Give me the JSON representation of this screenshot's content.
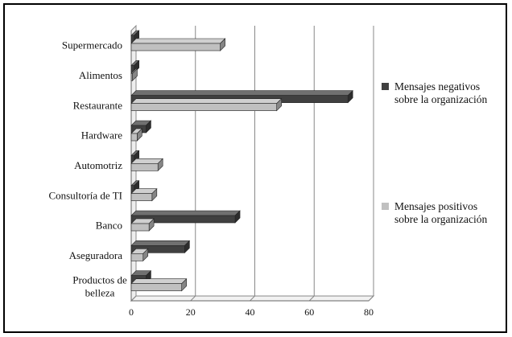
{
  "chart_data": {
    "type": "bar",
    "orientation": "horizontal",
    "style": "3d-clustered",
    "categories": [
      "Supermercado",
      "Alimentos",
      "Restaurante",
      "Hardware",
      "Automotriz",
      "Consultoría de TI",
      "Banco",
      "Aseguradora",
      "Productos de belleza"
    ],
    "series": [
      {
        "name": "Mensajes negativos sobre la organización",
        "color": "#404040",
        "values": [
          1,
          1,
          73,
          5,
          1,
          1,
          35,
          18,
          5
        ]
      },
      {
        "name": "Mensajes positivos sobre la organización",
        "color": "#c0c0c0",
        "values": [
          30,
          0,
          49,
          2,
          9,
          7,
          6,
          4,
          17
        ]
      }
    ],
    "xlim": [
      0,
      80
    ],
    "xticks": [
      0,
      20,
      40,
      60,
      80
    ],
    "grid": true,
    "legend_position": "right"
  }
}
